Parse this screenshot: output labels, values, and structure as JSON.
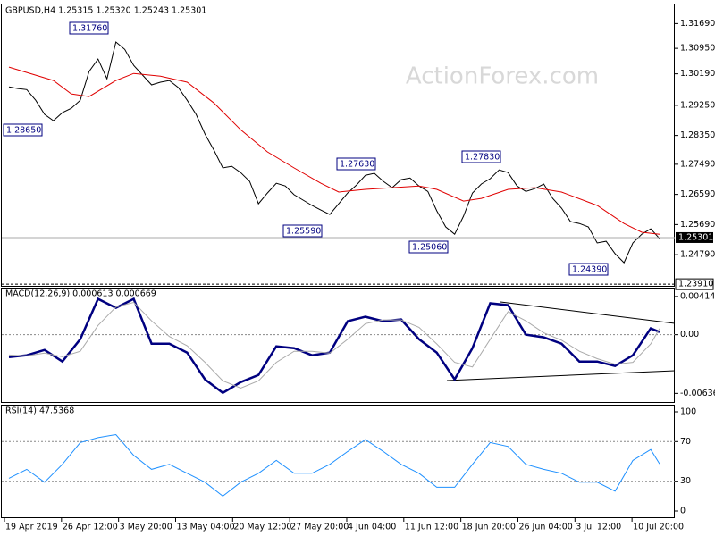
{
  "chart_data": [
    {
      "type": "line",
      "title": "GBPUSD,H4  1.25315 1.25320 1.25243 1.25301",
      "watermark": "ActionForex.com",
      "xlim": [
        -0.8,
        74.7
      ],
      "ylim": [
        1.2386,
        1.3226
      ],
      "yticks": [
        {
          "value": 1.3169,
          "label": "1.31690"
        },
        {
          "value": 1.3095,
          "label": "1.30950"
        },
        {
          "value": 1.3019,
          "label": "1.30190"
        },
        {
          "value": 1.2925,
          "label": "1.29250"
        },
        {
          "value": 1.2835,
          "label": "1.28350"
        },
        {
          "value": 1.2749,
          "label": "1.27490"
        },
        {
          "value": 1.2659,
          "label": "1.26590"
        },
        {
          "value": 1.2569,
          "label": "1.25690"
        },
        {
          "value": 1.2479,
          "label": "1.24790"
        }
      ],
      "last_price": {
        "value": 1.25301,
        "label": "1.25301"
      },
      "level": {
        "value": 1.2391,
        "label": "1.23910"
      },
      "annotations": [
        "1.31760",
        "1.28650",
        "1.27630",
        "1.25590",
        "1.27830",
        "1.25060",
        "1.24390"
      ],
      "x": [
        0,
        1,
        2,
        3,
        4,
        5,
        6,
        7,
        8,
        9,
        10,
        11,
        12,
        13,
        14,
        15,
        16,
        17,
        18,
        19,
        20,
        21,
        22,
        23,
        24,
        25,
        26,
        27,
        28,
        29,
        30,
        31,
        32,
        33,
        34,
        35,
        36,
        37,
        38,
        39,
        40,
        41,
        42,
        43,
        44,
        45,
        46,
        47,
        48,
        49,
        50,
        51,
        52,
        53,
        54,
        55,
        56,
        57,
        58,
        59,
        60,
        61,
        62,
        63,
        64,
        65,
        66,
        67,
        68,
        69,
        70,
        71,
        72,
        73
      ],
      "series": [
        {
          "color": "#000000",
          "values": [
            1.298,
            1.2975,
            1.2972,
            1.294,
            1.2898,
            1.2879,
            1.2903,
            1.2916,
            1.294,
            1.3026,
            1.3063,
            1.3004,
            1.3114,
            1.3092,
            1.3044,
            1.3015,
            1.2986,
            1.2994,
            1.2999,
            1.2978,
            1.294,
            1.2898,
            1.2839,
            1.2791,
            1.2738,
            1.2743,
            1.2724,
            1.2698,
            1.2631,
            1.2663,
            1.2692,
            1.2684,
            1.2658,
            1.2642,
            1.2626,
            1.2612,
            1.2599,
            1.2631,
            1.2663,
            1.2687,
            1.2716,
            1.2722,
            1.2698,
            1.2679,
            1.2703,
            1.2708,
            1.2684,
            1.2668,
            1.261,
            1.2562,
            1.254,
            1.2594,
            1.2663,
            1.269,
            1.2706,
            1.2732,
            1.2724,
            1.2684,
            1.2668,
            1.2676,
            1.269,
            1.2647,
            1.2618,
            1.2578,
            1.2572,
            1.2562,
            1.2514,
            1.2519,
            1.2482,
            1.2455,
            1.2514,
            1.254,
            1.2556,
            1.2527
          ]
        },
        {
          "color": "#e00000",
          "x": [
            0,
            5,
            7,
            9,
            12,
            14,
            17,
            20,
            23,
            26,
            29,
            32,
            35,
            37,
            40,
            43,
            46,
            48,
            51,
            53,
            56,
            59,
            62,
            66,
            69,
            71,
            73
          ],
          "values": [
            1.3039,
            1.2999,
            1.2959,
            1.2951,
            1.2999,
            1.302,
            1.3012,
            1.2994,
            1.2932,
            1.2852,
            1.2786,
            1.2738,
            1.2692,
            1.2666,
            1.2674,
            1.2679,
            1.2684,
            1.2674,
            1.2639,
            1.2647,
            1.2674,
            1.2679,
            1.2666,
            1.2626,
            1.2572,
            1.2546,
            1.254
          ]
        }
      ]
    },
    {
      "type": "line",
      "title": "MACD(12,26,9) 0.000613 0.000669",
      "xlim": [
        -0.8,
        74.7
      ],
      "ylim": [
        -0.0073,
        0.0051
      ],
      "yticks": [
        0.004141,
        {
          "value": 0,
          "label": "0.00"
        },
        -0.006365
      ],
      "x": [
        0,
        2,
        4,
        6,
        8,
        10,
        12,
        14,
        16,
        18,
        20,
        22,
        24,
        26,
        28,
        30,
        32,
        34,
        36,
        38,
        40,
        42,
        44,
        46,
        48,
        50,
        52,
        54,
        56,
        58,
        60,
        62,
        64,
        66,
        68,
        70,
        72,
        73
      ],
      "series": [
        {
          "color": "#000080",
          "values": [
            -0.00243,
            -0.00223,
            -0.00165,
            -0.00291,
            -0.00049,
            0.00388,
            0.00291,
            0.00388,
            -0.00097,
            -0.00097,
            -0.00194,
            -0.00485,
            -0.00631,
            -0.00515,
            -0.00437,
            -0.00126,
            -0.00146,
            -0.00223,
            -0.00194,
            0.00146,
            0.00194,
            0.00146,
            0.00165,
            -0.00049,
            -0.00194,
            -0.00485,
            -0.00146,
            0.0034,
            0.0032,
            0,
            -0.00029,
            -0.00097,
            -0.00291,
            -0.00291,
            -0.0034,
            -0.00223,
            0.00068,
            0.00029
          ]
        },
        {
          "color": "#aaaaaa",
          "values": [
            -0.0022,
            -0.0023,
            -0.002,
            -0.0024,
            -0.0018,
            0.001,
            0.003,
            0.0035,
            0.0015,
            -0.0002,
            -0.0012,
            -0.003,
            -0.005,
            -0.0058,
            -0.005,
            -0.003,
            -0.0018,
            -0.0018,
            -0.002,
            -0.0005,
            0.0012,
            0.0016,
            0.0016,
            0.0008,
            -0.001,
            -0.003,
            -0.0035,
            -0.0005,
            0.0025,
            0.0015,
            0.0002,
            -0.0006,
            -0.0018,
            -0.0026,
            -0.0032,
            -0.003,
            -0.001,
            0.00066
          ]
        }
      ]
    },
    {
      "type": "line",
      "title": "RSI(14) 47.5368",
      "xlim": [
        -0.8,
        74.7
      ],
      "ylim": [
        -7.2,
        107.2
      ],
      "yticks": [
        100,
        70,
        30,
        0
      ],
      "levels": [
        70,
        30
      ],
      "xticks": [
        {
          "value": -0.5,
          "label": "19 Apr 2019"
        },
        {
          "value": 5.9,
          "label": "26 Apr 12:00"
        },
        {
          "value": 12.3,
          "label": "3 May 20:00"
        },
        {
          "value": 18.7,
          "label": "13 May 04:00"
        },
        {
          "value": 25.1,
          "label": "20 May 12:00"
        },
        {
          "value": 31.5,
          "label": "27 May 20:00"
        },
        {
          "value": 37.9,
          "label": "4 Jun 04:00"
        },
        {
          "value": 44.3,
          "label": "11 Jun 12:00"
        },
        {
          "value": 50.7,
          "label": "18 Jun 20:00"
        },
        {
          "value": 57.1,
          "label": "26 Jun 04:00"
        },
        {
          "value": 63.5,
          "label": "3 Jul 12:00"
        },
        {
          "value": 69.9,
          "label": "10 Jul 20:00"
        }
      ],
      "x": [
        0,
        2,
        4,
        6,
        8,
        10,
        12,
        14,
        16,
        18,
        20,
        22,
        24,
        26,
        28,
        30,
        32,
        34,
        36,
        38,
        40,
        42,
        44,
        46,
        48,
        50,
        52,
        54,
        56,
        58,
        60,
        62,
        64,
        66,
        68,
        70,
        72,
        73
      ],
      "series": [
        {
          "color": "#1e90ff",
          "values": [
            33,
            42,
            29,
            47,
            69,
            74,
            77,
            56,
            42,
            47,
            38,
            29,
            15,
            29,
            38,
            51,
            38,
            38,
            47,
            60,
            72,
            60,
            47,
            38,
            24,
            24,
            47,
            69,
            65,
            47,
            42,
            38,
            29,
            29,
            20,
            51,
            62,
            47.5
          ]
        }
      ]
    }
  ]
}
